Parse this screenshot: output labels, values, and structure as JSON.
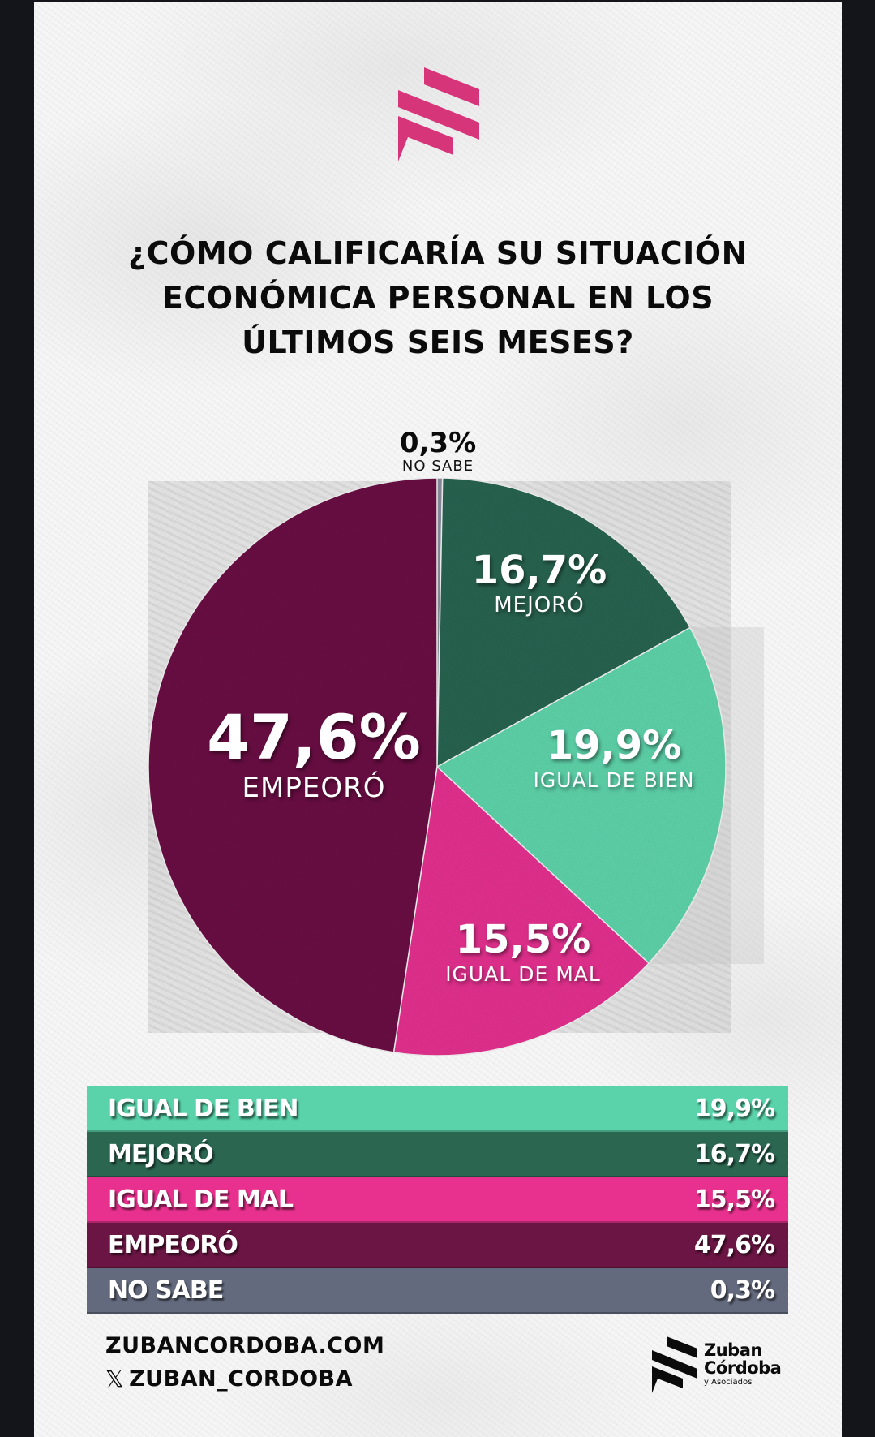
{
  "title": {
    "line1": "¿CÓMO CALIFICARÍA SU SITUACIÓN",
    "line2": "ECONÓMICA PERSONAL EN LOS",
    "line3": "ÚLTIMOS SEIS MESES?"
  },
  "icons": {
    "top_logo": "zuban-cordoba-stripes-logo",
    "footer_logo": "zuban-cordoba-stripes-logo",
    "x_icon": "𝕏"
  },
  "colors": {
    "mejoro": "#2a6351",
    "igual_de_bien": "#5fd3aa",
    "igual_de_mal": "#e3318f",
    "empeoro": "#6b1244",
    "no_sabe": "#6a6f80",
    "accent_pink": "#d6357a"
  },
  "chart_data": {
    "type": "pie",
    "title": "¿CÓMO CALIFICARÍA SU SITUACIÓN ECONÓMICA PERSONAL EN LOS ÚLTIMOS SEIS MESES?",
    "start_angle": "12 o'clock, clockwise",
    "slices": [
      {
        "key": "no_sabe",
        "label": "NO SABE",
        "value": 0.3,
        "display": "0,3%",
        "color": "#8a8d9c"
      },
      {
        "key": "mejoro",
        "label": "MEJORÓ",
        "value": 16.7,
        "display": "16,7%",
        "color": "#2a6351"
      },
      {
        "key": "igual_de_bien",
        "label": "IGUAL DE BIEN",
        "value": 19.9,
        "display": "19,9%",
        "color": "#5fd3aa"
      },
      {
        "key": "igual_de_mal",
        "label": "IGUAL DE MAL",
        "value": 15.5,
        "display": "15,5%",
        "color": "#e3318f"
      },
      {
        "key": "empeoro",
        "label": "EMPEORÓ",
        "value": 47.6,
        "display": "47,6%",
        "color": "#6b1244"
      }
    ]
  },
  "pie_labels": {
    "no_sabe": {
      "pct": "0,3%",
      "label": "NO SABE"
    },
    "mejoro": {
      "pct": "16,7%",
      "label": "MEJORÓ"
    },
    "igual_de_bien": {
      "pct": "19,9%",
      "label": "IGUAL DE BIEN"
    },
    "igual_de_mal": {
      "pct": "15,5%",
      "label": "IGUAL DE MAL"
    },
    "empeoro": {
      "pct": "47,6%",
      "label": "EMPEORÓ"
    }
  },
  "legend": [
    {
      "label": "IGUAL DE BIEN",
      "value": "19,9%",
      "color": "#5ad3aa"
    },
    {
      "label": "MEJORÓ",
      "value": "16,7%",
      "color": "#2b6651"
    },
    {
      "label": "IGUAL DE MAL",
      "value": "15,5%",
      "color": "#e8318e"
    },
    {
      "label": "EMPEORÓ",
      "value": "47,6%",
      "color": "#6a1543"
    },
    {
      "label": "NO SABE",
      "value": "0,3%",
      "color": "#636a7d"
    }
  ],
  "footer": {
    "website": "ZUBANCORDOBA.COM",
    "x_handle": "ZUBAN_CORDOBA",
    "brand_line1": "Zuban",
    "brand_line2": "Córdoba",
    "brand_line3": "y Asociados"
  }
}
